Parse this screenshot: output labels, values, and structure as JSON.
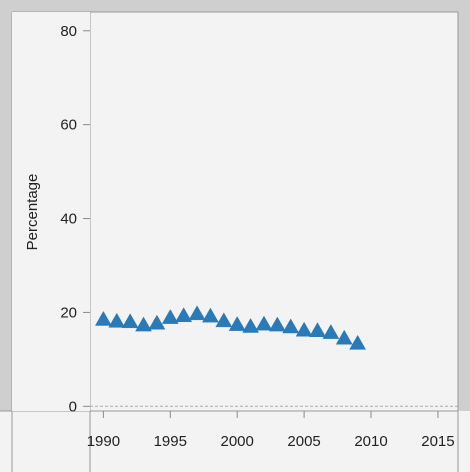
{
  "chart_data": {
    "type": "scatter",
    "title": "",
    "xlabel": "",
    "ylabel": "Percentage",
    "xlim": [
      1989,
      2016.5
    ],
    "ylim": [
      -1,
      84
    ],
    "x_ticks": [
      1990,
      1995,
      2000,
      2005,
      2010,
      2015
    ],
    "y_ticks": [
      0,
      20,
      40,
      60,
      80
    ],
    "grid": false,
    "legend": "none",
    "marker": "triangle",
    "colors": {
      "marker": "#2a7ab8",
      "plot_background": "#f3f3f3",
      "frame_background": "#cfcfcf",
      "zero_line": "#aaaaaa"
    },
    "series": [
      {
        "x": [
          1990,
          1991,
          1992,
          1993,
          1994,
          1995,
          1996,
          1997,
          1998,
          1999,
          2000,
          2001,
          2002,
          2003,
          2004,
          2005,
          2006,
          2007,
          2008,
          2009
        ],
        "y": [
          18.5,
          18.1,
          18.0,
          17.3,
          17.7,
          18.9,
          19.3,
          19.7,
          19.2,
          18.2,
          17.4,
          17.0,
          17.5,
          17.3,
          16.9,
          16.2,
          16.1,
          15.7,
          14.5,
          13.4
        ]
      }
    ]
  }
}
